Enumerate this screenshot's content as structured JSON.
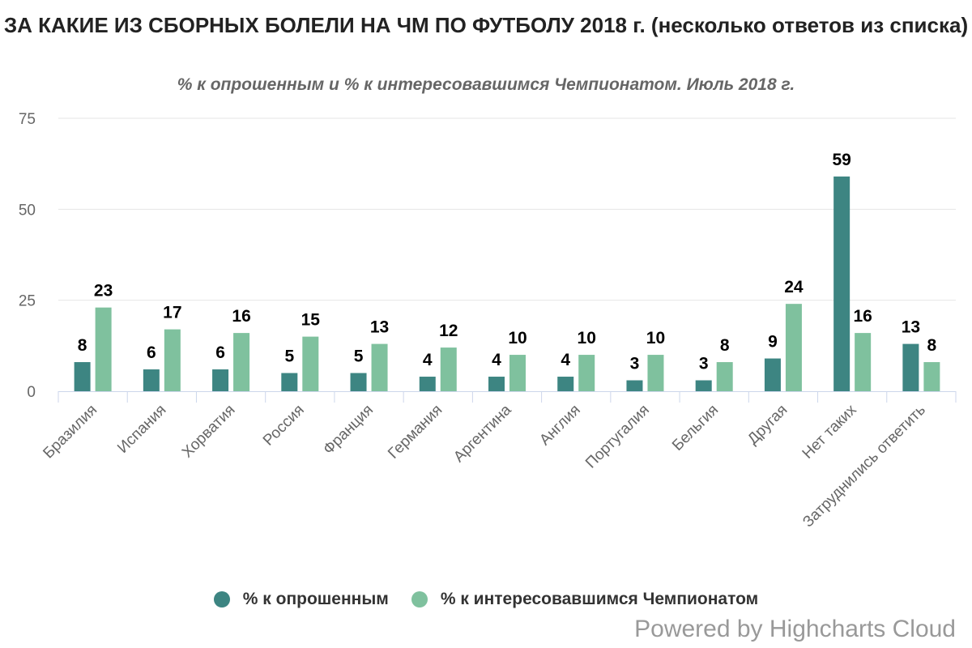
{
  "chart_data": {
    "type": "bar",
    "title": "ЗА КАКИЕ ИЗ СБОРНЫХ БОЛЕЛИ НА ЧМ ПО ФУТБОЛУ 2018 г. (несколько ответов из списка)",
    "subtitle": "% к опрошенным и % к интересовавшимся Чемпионатом. Июль 2018 г.",
    "categories": [
      "Бразилия",
      "Испания",
      "Хорватия",
      "Россия",
      "Франция",
      "Германия",
      "Аргентина",
      "Англия",
      "Португалия",
      "Бельгия",
      "Другая",
      "Нет таких",
      "Затруднились ответить"
    ],
    "series": [
      {
        "name": "% к опрошенным",
        "color": "#3d8582",
        "values": [
          8,
          6,
          6,
          5,
          5,
          4,
          4,
          4,
          3,
          3,
          9,
          59,
          13
        ]
      },
      {
        "name": "% к интересовавшимся Чемпионатом",
        "color": "#7fc19e",
        "values": [
          23,
          17,
          16,
          15,
          13,
          12,
          10,
          10,
          10,
          8,
          24,
          16,
          8
        ]
      }
    ],
    "ylim": [
      0,
      75
    ],
    "yticks": [
      "0",
      "25",
      "50",
      "75"
    ],
    "grid": true,
    "legend": "bottom-center",
    "xlabel": "",
    "ylabel": ""
  },
  "credits": "Powered by Highcharts Cloud"
}
